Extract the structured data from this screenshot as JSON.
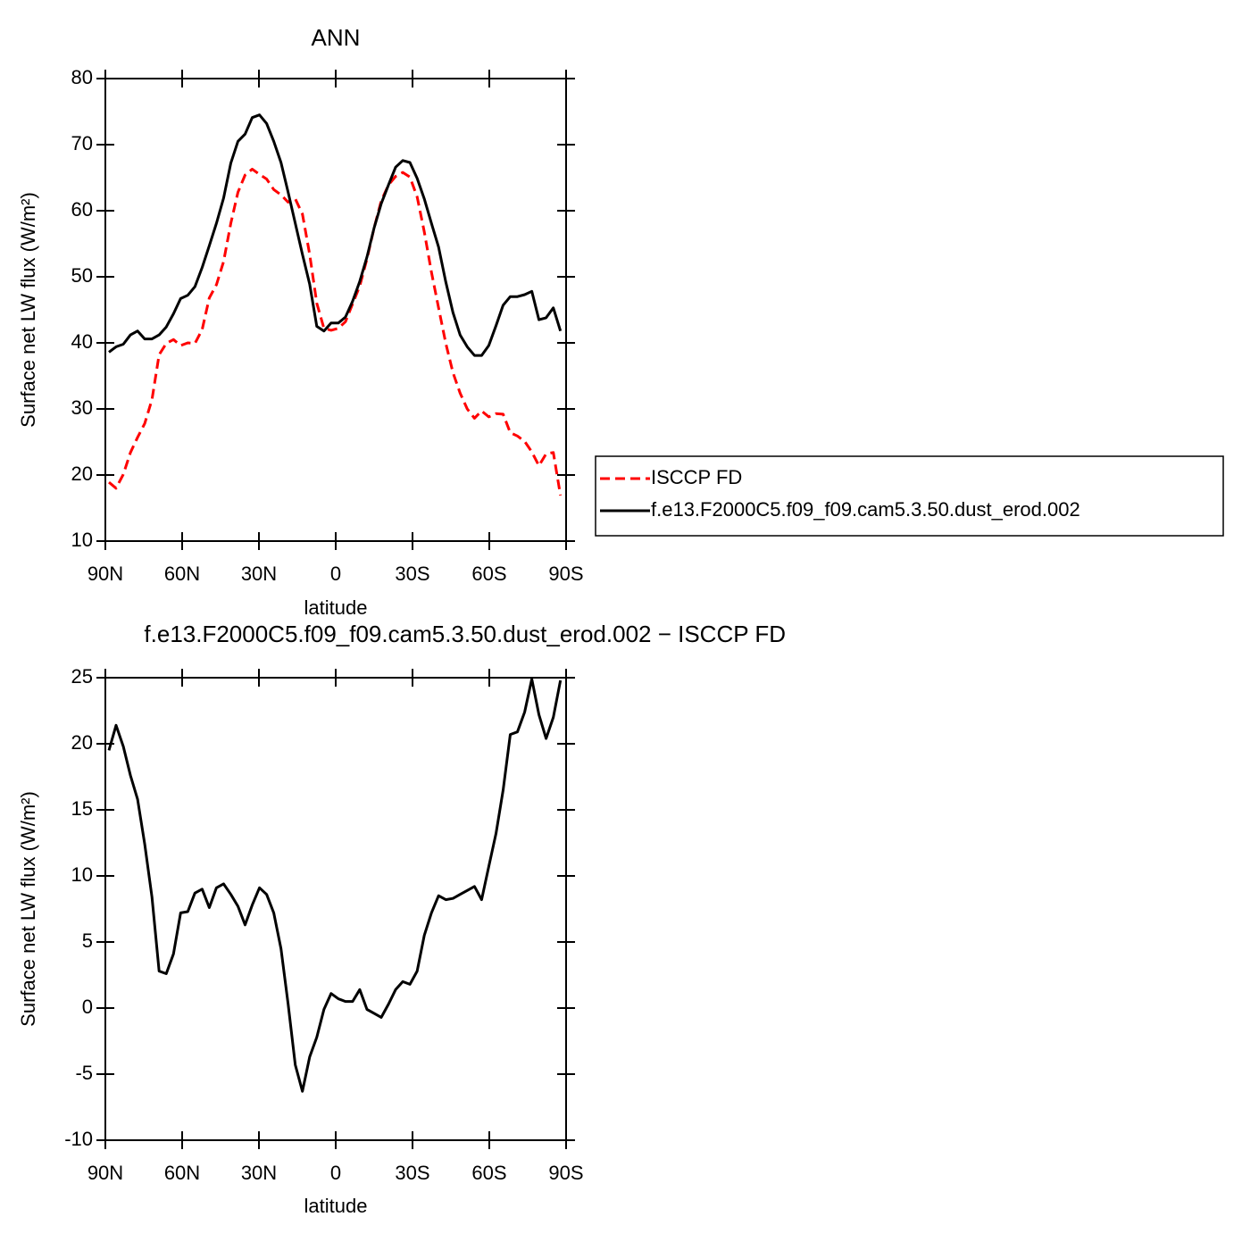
{
  "chart_data": [
    {
      "type": "line",
      "title": "ANN",
      "xlabel": "latitude",
      "ylabel": "Surface net LW flux (W/m²)",
      "x": [
        88.6,
        85.8,
        83.0,
        80.2,
        77.4,
        74.6,
        71.8,
        69.0,
        66.2,
        63.4,
        60.6,
        57.8,
        55.0,
        52.2,
        49.4,
        46.6,
        43.8,
        41.0,
        38.2,
        35.4,
        32.6,
        29.8,
        27.0,
        24.2,
        21.4,
        18.6,
        15.8,
        13.0,
        10.2,
        7.4,
        4.6,
        1.8,
        -1.0,
        -3.8,
        -6.6,
        -9.4,
        -12.2,
        -15.0,
        -17.8,
        -20.6,
        -23.4,
        -26.2,
        -29.0,
        -31.8,
        -34.6,
        -37.4,
        -40.2,
        -43.0,
        -45.8,
        -48.6,
        -51.4,
        -54.2,
        -57.0,
        -59.8,
        -62.6,
        -65.4,
        -68.2,
        -71.0,
        -73.8,
        -76.6,
        -79.4,
        -82.2,
        -85.0,
        -87.8
      ],
      "series": [
        {
          "name": "ISCCP FD",
          "color": "#ff0000",
          "dashed": true,
          "values": [
            18.9,
            18.0,
            20.1,
            23.4,
            25.7,
            27.8,
            31.4,
            38.2,
            39.9,
            40.5,
            39.6,
            40.0,
            39.9,
            42.0,
            46.8,
            48.8,
            52.3,
            58.1,
            62.8,
            65.4,
            66.3,
            65.5,
            64.8,
            63.2,
            62.4,
            61.3,
            61.8,
            59.5,
            53.4,
            46.0,
            42.2,
            41.9,
            42.2,
            43.2,
            45.9,
            48.6,
            52.7,
            57.4,
            61.5,
            63.9,
            65.2,
            65.8,
            65.1,
            62.1,
            56.8,
            50.7,
            45.3,
            39.9,
            35.5,
            32.4,
            30.0,
            28.6,
            29.7,
            28.8,
            29.3,
            29.2,
            26.4,
            25.9,
            25.1,
            23.5,
            21.4,
            23.2,
            23.4,
            16.9
          ]
        },
        {
          "name": "f.e13.F2000C5.f09_f09.cam5.3.50.dust_erod.002",
          "color": "#000000",
          "dashed": false,
          "values": [
            38.6,
            39.4,
            39.8,
            41.2,
            41.8,
            40.6,
            40.6,
            41.2,
            42.4,
            44.4,
            46.7,
            47.2,
            48.5,
            51.4,
            54.7,
            58.1,
            61.9,
            67.2,
            70.5,
            71.6,
            74.1,
            74.5,
            73.2,
            70.5,
            67.3,
            62.8,
            58.1,
            53.4,
            48.9,
            42.5,
            41.8,
            43.0,
            43.0,
            43.9,
            46.3,
            49.3,
            53.0,
            57.4,
            61.1,
            63.9,
            66.6,
            67.6,
            67.3,
            64.9,
            61.8,
            58.1,
            54.5,
            49.2,
            44.6,
            41.2,
            39.4,
            38.1,
            38.1,
            39.6,
            42.6,
            45.7,
            47.0,
            47.0,
            47.3,
            47.8,
            43.5,
            43.8,
            45.3,
            41.8
          ]
        }
      ],
      "xlim": [
        90,
        -90
      ],
      "xticks": [
        {
          "value": 90,
          "label": "90N"
        },
        {
          "value": 60,
          "label": "60N"
        },
        {
          "value": 30,
          "label": "30N"
        },
        0,
        {
          "value": -30,
          "label": "30S"
        },
        {
          "value": -60,
          "label": "60S"
        },
        {
          "value": -90,
          "label": "90S"
        }
      ],
      "ylim": [
        10,
        80
      ],
      "yticks": [
        10,
        20,
        30,
        40,
        50,
        60,
        70,
        80
      ],
      "legend": "right"
    },
    {
      "type": "line",
      "title": "f.e13.F2000C5.f09_f09.cam5.3.50.dust_erod.002 − ISCCP FD",
      "xlabel": "latitude",
      "ylabel": "Surface net LW flux (W/m²)",
      "x": [
        88.6,
        85.8,
        83.0,
        80.2,
        77.4,
        74.6,
        71.8,
        69.0,
        66.2,
        63.4,
        60.6,
        57.8,
        55.0,
        52.2,
        49.4,
        46.6,
        43.8,
        41.0,
        38.2,
        35.4,
        32.6,
        29.8,
        27.0,
        24.2,
        21.4,
        18.6,
        15.8,
        13.0,
        10.2,
        7.4,
        4.6,
        1.8,
        -1.0,
        -3.8,
        -6.6,
        -9.4,
        -12.2,
        -15.0,
        -17.8,
        -20.6,
        -23.4,
        -26.2,
        -29.0,
        -31.8,
        -34.6,
        -37.4,
        -40.2,
        -43.0,
        -45.8,
        -48.6,
        -51.4,
        -54.2,
        -57.0,
        -59.8,
        -62.6,
        -65.4,
        -68.2,
        -71.0,
        -73.8,
        -76.6,
        -79.4,
        -82.2,
        -85.0,
        -87.8
      ],
      "series": [
        {
          "color": "#000000",
          "dashed": false,
          "values": [
            19.5,
            21.4,
            19.8,
            17.6,
            15.8,
            12.4,
            8.4,
            2.8,
            2.6,
            4.1,
            7.2,
            7.3,
            8.7,
            9.0,
            7.6,
            9.1,
            9.4,
            8.6,
            7.7,
            6.3,
            7.8,
            9.1,
            8.6,
            7.2,
            4.5,
            0.3,
            -4.3,
            -6.3,
            -3.7,
            -2.2,
            -0.1,
            1.1,
            0.7,
            0.5,
            0.5,
            1.4,
            -0.1,
            -0.4,
            -0.7,
            0.3,
            1.4,
            2.0,
            1.8,
            2.8,
            5.5,
            7.2,
            8.5,
            8.2,
            8.3,
            8.6,
            8.9,
            9.2,
            8.2,
            10.7,
            13.2,
            16.5,
            20.7,
            20.9,
            22.4,
            24.9,
            22.2,
            20.4,
            22.0,
            24.8
          ]
        }
      ],
      "xlim": [
        90,
        -90
      ],
      "xticks": [
        {
          "value": 90,
          "label": "90N"
        },
        {
          "value": 60,
          "label": "60N"
        },
        {
          "value": 30,
          "label": "30N"
        },
        0,
        {
          "value": -30,
          "label": "30S"
        },
        {
          "value": -60,
          "label": "60S"
        },
        {
          "value": -90,
          "label": "90S"
        }
      ],
      "ylim": [
        -10,
        25
      ],
      "yticks": [
        -10,
        -5,
        0,
        5,
        10,
        15,
        20,
        25
      ]
    }
  ]
}
